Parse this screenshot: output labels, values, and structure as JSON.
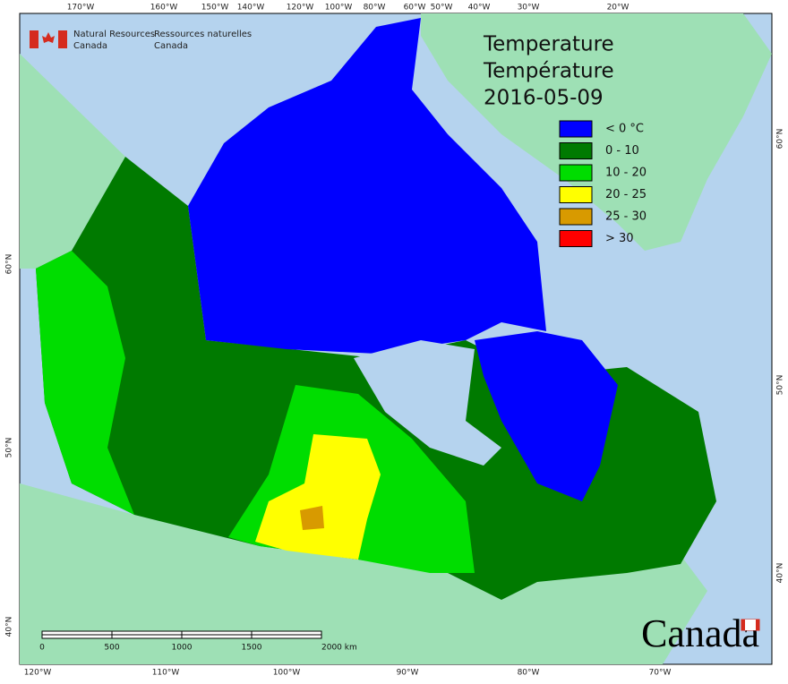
{
  "header": {
    "agency_en": [
      "Natural Resources",
      "Canada"
    ],
    "agency_fr": [
      "Ressources naturelles",
      "Canada"
    ]
  },
  "title": {
    "en": "Temperature",
    "fr": "Température",
    "date": "2016-05-09"
  },
  "legend": [
    {
      "label": "< 0 °C",
      "color": "#0000ff"
    },
    {
      "label": "0 - 10",
      "color": "#007a00"
    },
    {
      "label": "10 - 20",
      "color": "#00dd00"
    },
    {
      "label": "20 - 25",
      "color": "#ffff00"
    },
    {
      "label": "25 - 30",
      "color": "#d89a00"
    },
    {
      "label": "> 30",
      "color": "#ff0000"
    }
  ],
  "scale_bar": {
    "labels": [
      "0",
      "500",
      "1000",
      "1500",
      "2000 km"
    ]
  },
  "graticule": {
    "top": [
      "170°W",
      "160°W",
      "150°W",
      "140°W",
      "120°W",
      "100°W",
      "80°W",
      "60°W",
      "50°W",
      "40°W",
      "30°W",
      "20°W"
    ],
    "bottom": [
      "120°W",
      "110°W",
      "100°W",
      "90°W",
      "80°W",
      "70°W"
    ],
    "left": [
      "60°N",
      "50°N",
      "40°N"
    ],
    "right": [
      "60°N",
      "50°N",
      "40°N"
    ]
  },
  "wordmark": "Canada"
}
